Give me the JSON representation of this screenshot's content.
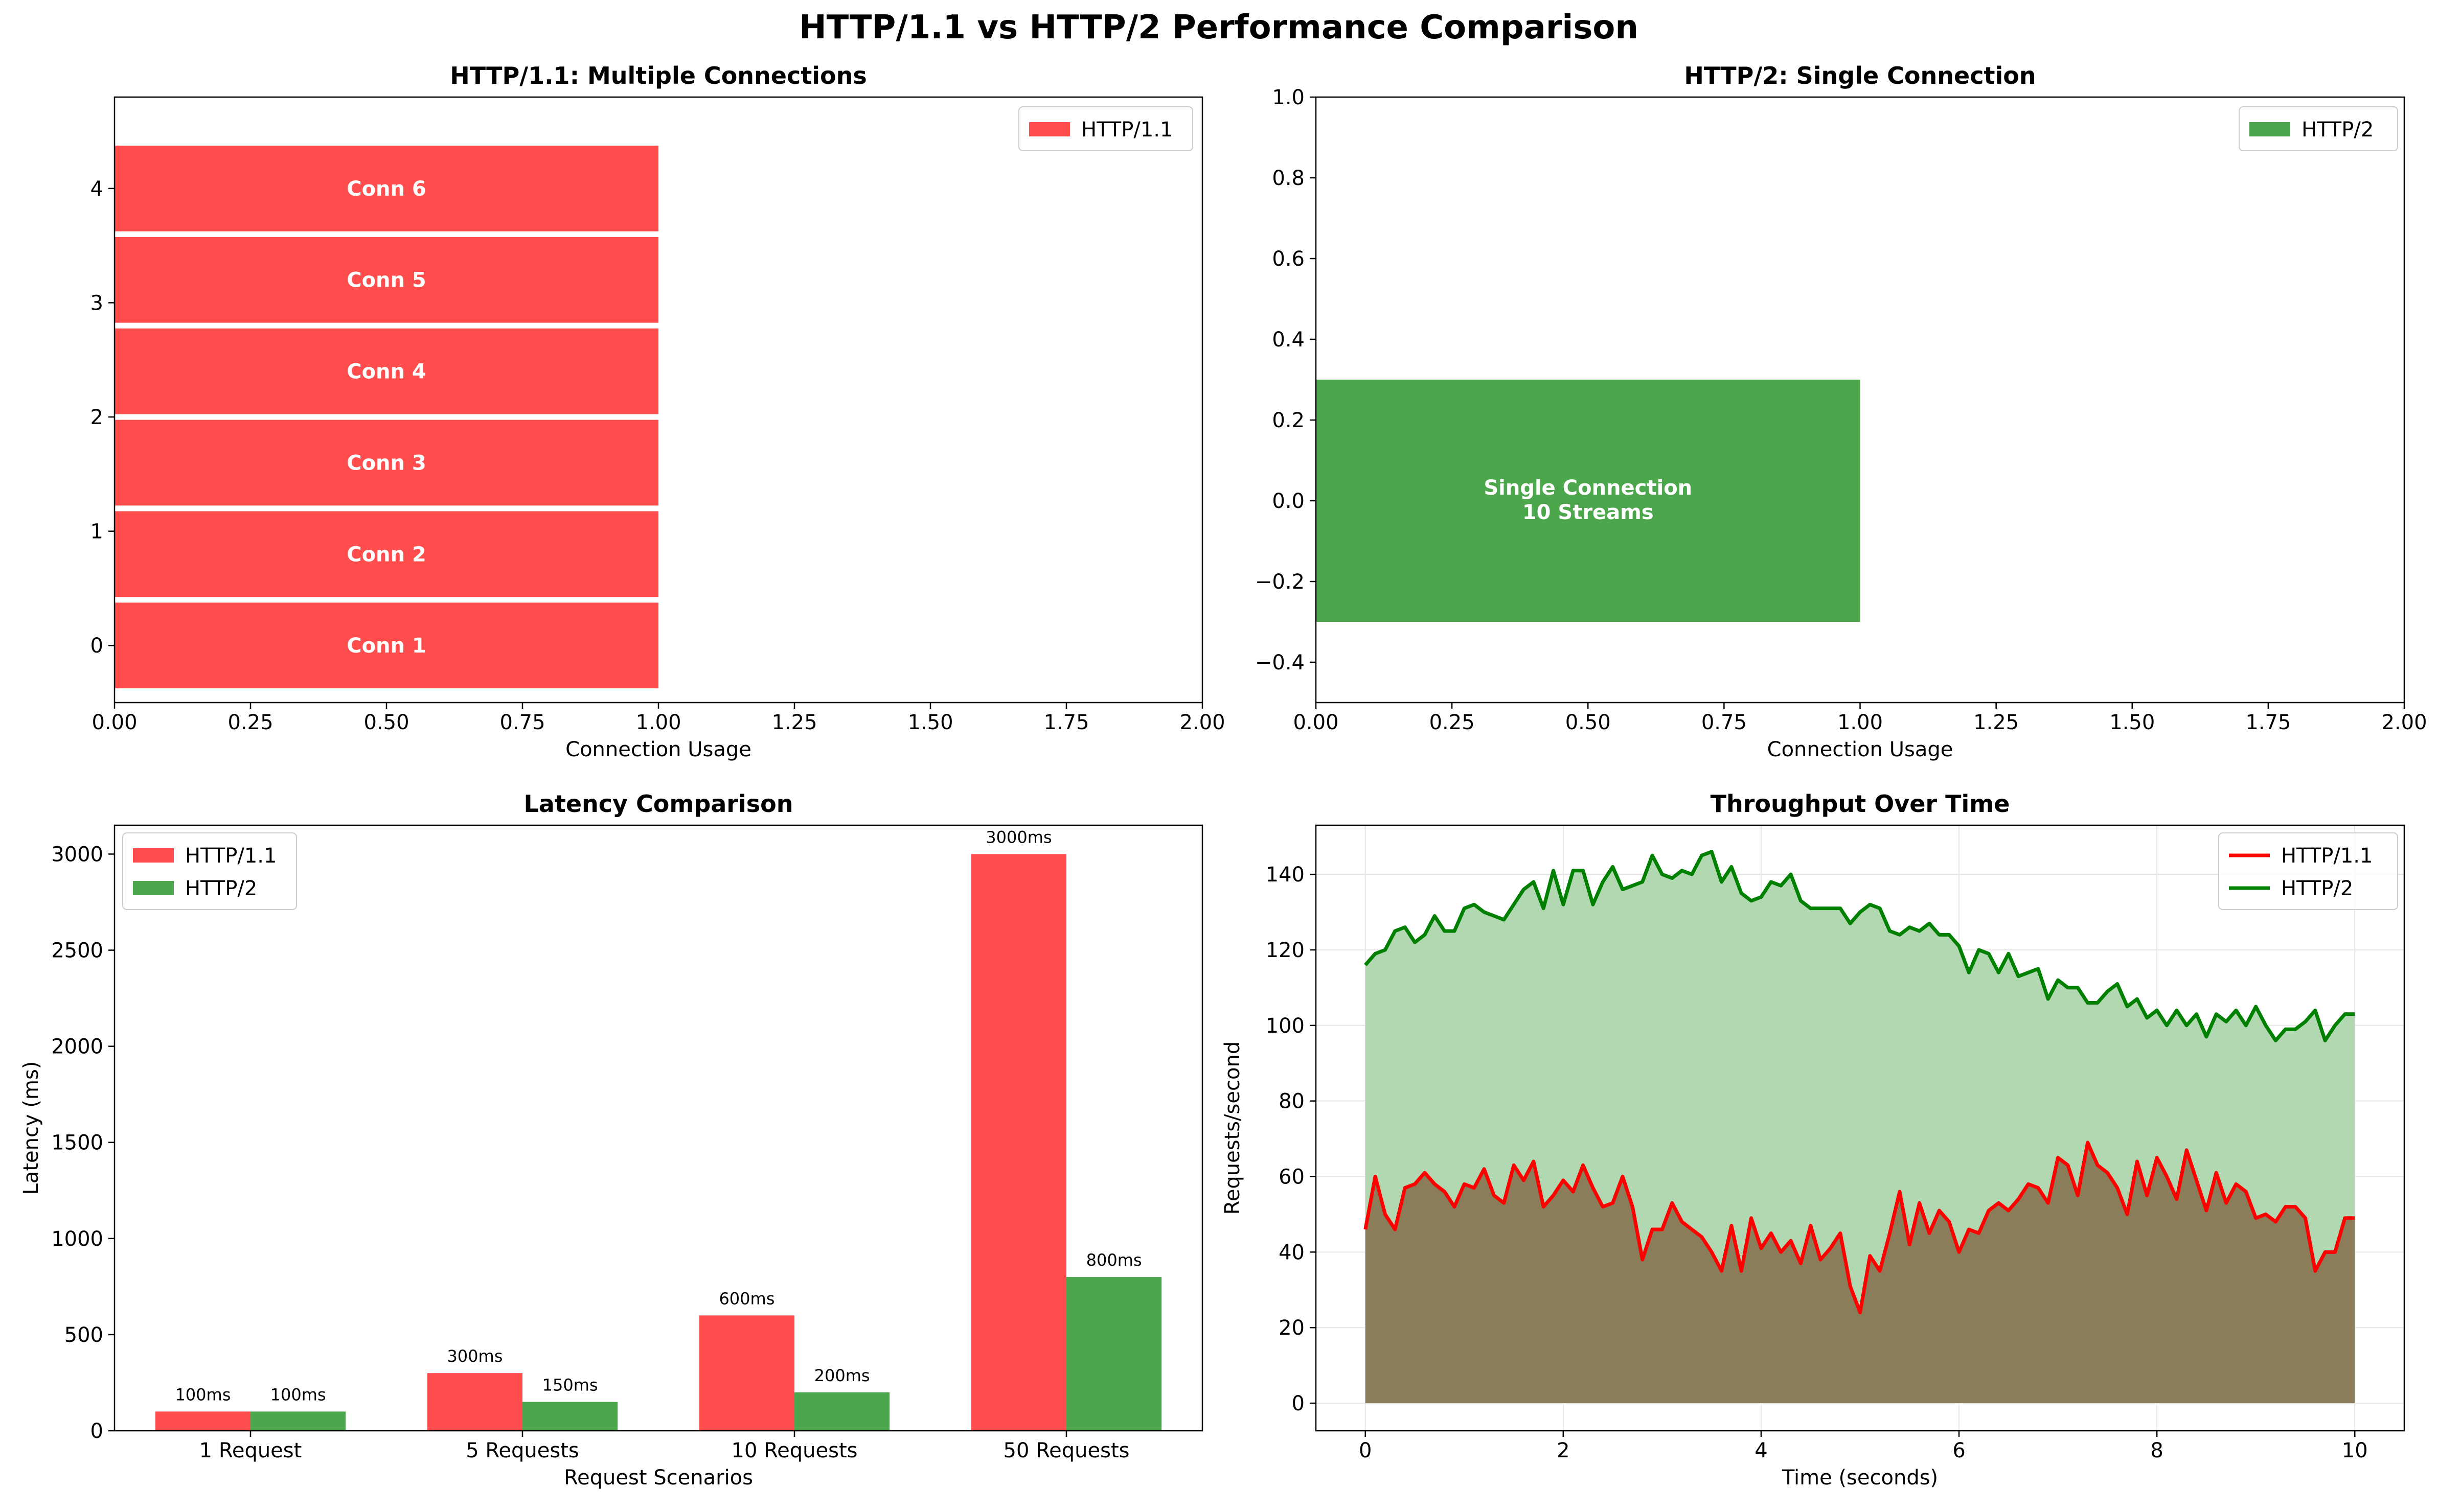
{
  "figure": {
    "title": "HTTP/1.1 vs HTTP/2 Performance Comparison"
  },
  "chart_data": [
    {
      "id": "http11",
      "type": "bar",
      "orientation": "horizontal",
      "title": "HTTP/1.1: Multiple Connections",
      "xlabel": "Connection Usage",
      "ylabel": "",
      "xlim": [
        0,
        2.0
      ],
      "ylim": [
        -0.5,
        4.8
      ],
      "xticks": [
        "0.00",
        "0.25",
        "0.50",
        "0.75",
        "1.00",
        "1.25",
        "1.50",
        "1.75",
        "2.00"
      ],
      "yticks": [
        "0",
        "1",
        "2",
        "3",
        "4"
      ],
      "bar_height": 0.75,
      "bars": [
        {
          "y": 0,
          "value": 1.0,
          "label": "Conn 1"
        },
        {
          "y": 0.8,
          "value": 1.0,
          "label": "Conn 2"
        },
        {
          "y": 1.6,
          "value": 1.0,
          "label": "Conn 3"
        },
        {
          "y": 2.4,
          "value": 1.0,
          "label": "Conn 4"
        },
        {
          "y": 3.2,
          "value": 1.0,
          "label": "Conn 5"
        },
        {
          "y": 4.0,
          "value": 1.0,
          "label": "Conn 6"
        }
      ],
      "legend": {
        "position": "top-right",
        "entries": [
          {
            "label": "HTTP/1.1",
            "color": "#ff4d4d"
          }
        ]
      },
      "color": "#ff4d4d",
      "grid": false
    },
    {
      "id": "http2",
      "type": "bar",
      "orientation": "horizontal",
      "title": "HTTP/2: Single Connection",
      "xlabel": "Connection Usage",
      "ylabel": "",
      "xlim": [
        0,
        2.0
      ],
      "ylim": [
        -0.5,
        1.0
      ],
      "xticks": [
        "0.00",
        "0.25",
        "0.50",
        "0.75",
        "1.00",
        "1.25",
        "1.50",
        "1.75",
        "2.00"
      ],
      "yticks": [
        "−0.4",
        "−0.2",
        "0.0",
        "0.2",
        "0.4",
        "0.6",
        "0.8",
        "1.0"
      ],
      "bar_height": 0.6,
      "bars": [
        {
          "y": 0,
          "value": 1.0,
          "label_lines": [
            "Single Connection",
            "10 Streams"
          ]
        }
      ],
      "legend": {
        "position": "top-right",
        "entries": [
          {
            "label": "HTTP/2",
            "color": "#4ca64c"
          }
        ]
      },
      "color": "#4ca64c",
      "grid": false
    },
    {
      "id": "latency",
      "type": "bar",
      "title": "Latency Comparison",
      "xlabel": "Request Scenarios",
      "ylabel": "Latency (ms)",
      "ylim": [
        0,
        3150
      ],
      "yticks": [
        "0",
        "500",
        "1000",
        "1500",
        "2000",
        "2500",
        "3000"
      ],
      "categories": [
        "1 Request",
        "5 Requests",
        "10 Requests",
        "50 Requests"
      ],
      "series": [
        {
          "name": "HTTP/1.1",
          "color": "#ff4d4d",
          "values": [
            100,
            300,
            600,
            3000
          ],
          "labels": [
            "100ms",
            "300ms",
            "600ms",
            "3000ms"
          ]
        },
        {
          "name": "HTTP/2",
          "color": "#4ca64c",
          "values": [
            100,
            150,
            200,
            800
          ],
          "labels": [
            "100ms",
            "150ms",
            "200ms",
            "800ms"
          ]
        }
      ],
      "legend": {
        "position": "top-left"
      },
      "grid": false
    },
    {
      "id": "throughput",
      "type": "area",
      "title": "Throughput Over Time",
      "xlabel": "Time (seconds)",
      "ylabel": "Requests/second",
      "xlim": [
        -0.5,
        10.5
      ],
      "ylim": [
        -7.3,
        153
      ],
      "xticks": [
        "0",
        "2",
        "4",
        "6",
        "8",
        "10"
      ],
      "yticks": [
        "0",
        "20",
        "40",
        "60",
        "80",
        "100",
        "120",
        "140"
      ],
      "x": [
        0,
        0.1,
        0.2,
        0.3,
        0.4,
        0.5,
        0.6,
        0.7,
        0.8,
        0.9,
        1.0,
        1.1,
        1.2,
        1.3,
        1.4,
        1.5,
        1.6,
        1.7,
        1.8,
        1.9,
        2.0,
        2.1,
        2.2,
        2.3,
        2.4,
        2.5,
        2.6,
        2.7,
        2.8,
        2.9,
        3.0,
        3.1,
        3.2,
        3.3,
        3.4,
        3.5,
        3.6,
        3.7,
        3.8,
        3.9,
        4.0,
        4.1,
        4.2,
        4.3,
        4.4,
        4.5,
        4.6,
        4.7,
        4.8,
        4.9,
        5.0,
        5.1,
        5.2,
        5.3,
        5.4,
        5.5,
        5.6,
        5.7,
        5.8,
        5.9,
        6.0,
        6.1,
        6.2,
        6.3,
        6.4,
        6.5,
        6.6,
        6.7,
        6.8,
        6.9,
        7.0,
        7.1,
        7.2,
        7.3,
        7.4,
        7.5,
        7.6,
        7.7,
        7.8,
        7.9,
        8.0,
        8.1,
        8.2,
        8.3,
        8.4,
        8.5,
        8.6,
        8.7,
        8.8,
        8.9,
        9.0,
        9.1,
        9.2,
        9.3,
        9.4,
        9.5,
        9.6,
        9.7,
        9.8,
        9.9,
        10.0
      ],
      "series": [
        {
          "name": "HTTP/1.1",
          "color": "#ff0000",
          "fill": "#8b7d5a",
          "values": [
            46,
            60,
            50,
            46,
            57,
            58,
            61,
            58,
            56,
            52,
            58,
            57,
            62,
            55,
            53,
            63,
            59,
            64,
            52,
            55,
            59,
            56,
            63,
            57,
            52,
            53,
            60,
            52,
            38,
            46,
            46,
            53,
            48,
            46,
            44,
            40,
            35,
            47,
            35,
            49,
            41,
            45,
            40,
            43,
            37,
            47,
            38,
            41,
            45,
            31,
            24,
            39,
            35,
            45,
            56,
            42,
            53,
            45,
            51,
            48,
            40,
            46,
            45,
            51,
            53,
            51,
            54,
            58,
            57,
            53,
            65,
            63,
            55,
            69,
            63,
            61,
            57,
            50,
            64,
            55,
            65,
            60,
            54,
            67,
            59,
            51,
            61,
            53,
            58,
            56,
            49,
            50,
            48,
            52,
            52,
            49,
            35,
            40,
            40,
            49,
            49
          ]
        },
        {
          "name": "HTTP/2",
          "color": "#008000",
          "fill": "#b2d8b2",
          "values": [
            116,
            119,
            120,
            125,
            126,
            122,
            124,
            129,
            125,
            125,
            131,
            132,
            130,
            129,
            128,
            132,
            136,
            138,
            131,
            141,
            132,
            141,
            141,
            132,
            138,
            142,
            136,
            137,
            138,
            145,
            140,
            139,
            141,
            140,
            145,
            146,
            138,
            142,
            135,
            133,
            134,
            138,
            137,
            140,
            133,
            131,
            131,
            131,
            131,
            127,
            130,
            132,
            131,
            125,
            124,
            126,
            125,
            127,
            124,
            124,
            121,
            114,
            120,
            119,
            114,
            119,
            113,
            114,
            115,
            107,
            112,
            110,
            110,
            106,
            106,
            109,
            111,
            105,
            107,
            102,
            104,
            100,
            104,
            100,
            103,
            97,
            103,
            101,
            104,
            100,
            105,
            100,
            96,
            99,
            99,
            101,
            104,
            96,
            100,
            103,
            103
          ]
        }
      ],
      "legend": {
        "position": "top-right"
      },
      "grid": true
    }
  ]
}
